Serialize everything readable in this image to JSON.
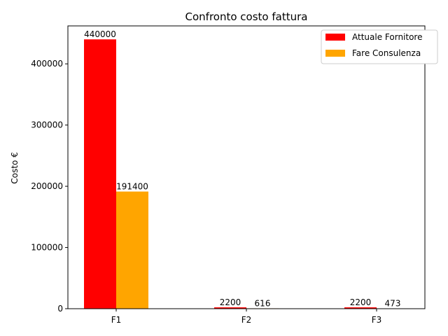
{
  "chart_data": {
    "type": "bar",
    "title": "Confronto costo fattura",
    "xlabel": "",
    "ylabel": "Costo €",
    "categories": [
      "F1",
      "F2",
      "F3"
    ],
    "series": [
      {
        "name": "Attuale Fornitore",
        "color": "#ff0000",
        "values": [
          440000,
          2200,
          2200
        ]
      },
      {
        "name": "Fare Consulenza",
        "color": "#ffa500",
        "values": [
          191400,
          616,
          473
        ]
      }
    ],
    "ylim": [
      0,
      462000
    ],
    "yticks": [
      0,
      100000,
      200000,
      300000,
      400000
    ],
    "grid": false,
    "legend_position": "top-right",
    "data_labels": true
  }
}
